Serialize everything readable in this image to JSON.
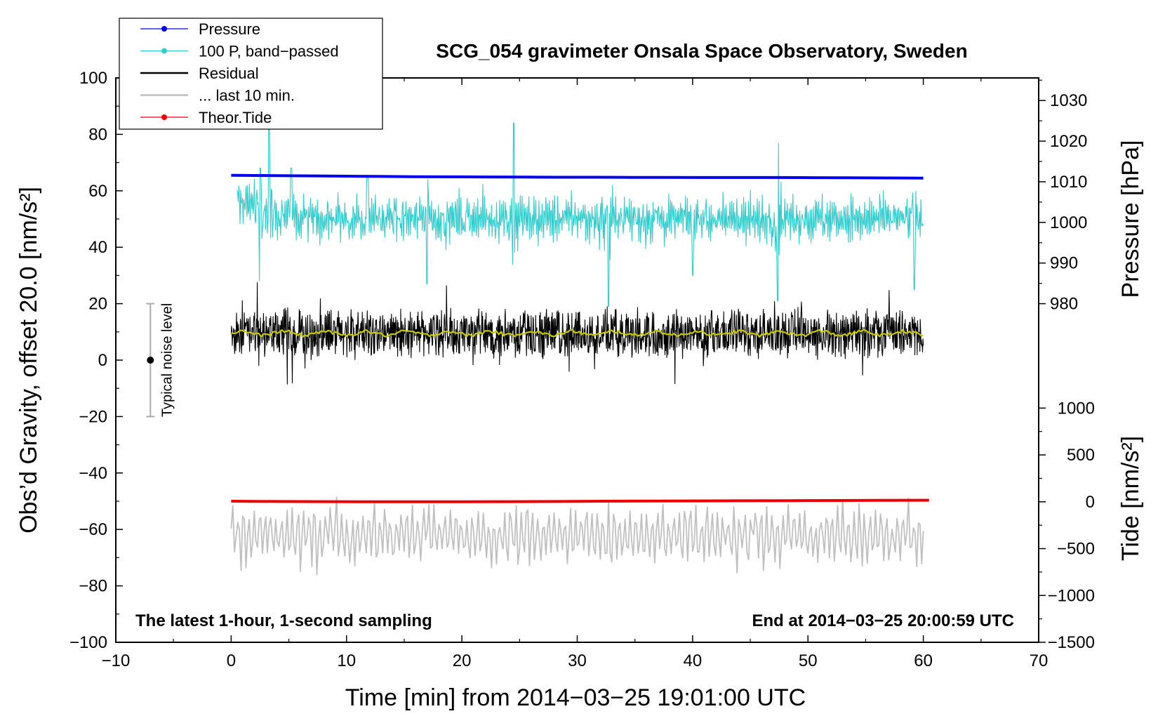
{
  "chart_data": {
    "type": "line",
    "title": "SCG_054 gravimeter Onsala Space Observatory, Sweden",
    "xlabel": "Time [min] from 2014−03−25 19:01:00 UTC",
    "ylabel": "Obs’d Gravity, offset 20.0 [nm/s²]",
    "ylabel_right_top": "Pressure [hPa]",
    "ylabel_right_bottom": "Tide [nm/s²]",
    "xlim": [
      -10,
      70
    ],
    "ylim": [
      -100,
      100
    ],
    "xticks": [
      -10,
      0,
      10,
      20,
      30,
      40,
      50,
      60,
      70
    ],
    "xtick_labels": [
      "−10",
      "0",
      "10",
      "20",
      "30",
      "40",
      "50",
      "60",
      "70"
    ],
    "yticks": [
      -100,
      -80,
      -60,
      -40,
      -20,
      0,
      20,
      40,
      60,
      80,
      100
    ],
    "ytick_labels": [
      "−100",
      "−80",
      "−60",
      "−40",
      "−20",
      "0",
      "20",
      "40",
      "60",
      "80",
      "100"
    ],
    "pressure_axis": {
      "ticks": [
        980,
        990,
        1000,
        1010,
        1020,
        1030
      ],
      "tick_labels": [
        "980",
        "990",
        "1000",
        "1010",
        "1020",
        "1030"
      ],
      "map": {
        "value_a": 980,
        "gravity_a": 20,
        "value_b": 1030,
        "gravity_b": 92
      }
    },
    "tide_axis": {
      "ticks": [
        -1500,
        -1000,
        -500,
        0,
        500,
        1000
      ],
      "tick_labels": [
        "−1500",
        "−1000",
        "−500",
        "0",
        "500",
        "1000"
      ],
      "map": {
        "value_a": -1500,
        "gravity_a": -100,
        "value_b": 1000,
        "gravity_b": -17
      }
    },
    "noise_bar": {
      "x": -7,
      "center": 0,
      "low": -20,
      "high": 20,
      "label": "Typical noise level"
    },
    "series": [
      {
        "name": "Pressure",
        "color": "#0000ee",
        "style": "line-marker",
        "x_start": 0,
        "x_end": 60,
        "values": [
          65.5,
          65.4,
          65.3,
          65.2,
          65.1,
          65.0,
          64.95,
          64.9,
          64.85,
          64.8,
          64.8,
          64.75,
          64.75,
          64.7,
          64.7,
          64.7,
          64.65,
          64.6,
          64.55,
          64.5
        ]
      },
      {
        "name": "100 P, band−passed",
        "color": "#33cccc",
        "style": "line-marker",
        "x_start": 0.5,
        "x_end": 60,
        "mean": 50,
        "amplitude": 5,
        "spikes": [
          {
            "x": 2.5,
            "low": 28,
            "high": 68
          },
          {
            "x": 3.3,
            "low": 25,
            "high": 83
          },
          {
            "x": 5.2,
            "low": 31,
            "high": 68
          },
          {
            "x": 11.8,
            "low": 33,
            "high": 65
          },
          {
            "x": 17.0,
            "low": 27,
            "high": 64
          },
          {
            "x": 24.5,
            "low": 20,
            "high": 84
          },
          {
            "x": 32.7,
            "low": 19,
            "high": 80
          },
          {
            "x": 40.0,
            "low": 30,
            "high": 60
          },
          {
            "x": 47.4,
            "low": 21,
            "high": 77
          },
          {
            "x": 59.2,
            "low": 25,
            "high": 63
          }
        ]
      },
      {
        "name": "Residual",
        "color": "#000000",
        "style": "line",
        "x_start": 0,
        "x_end": 60,
        "mean": 9.5,
        "amplitude": 5,
        "min": -11,
        "max": 28
      },
      {
        "name": "... last 10 min.",
        "color": "#c0c0c0",
        "style": "line",
        "x_start": 0,
        "x_end": 60,
        "mean": -62,
        "amplitude": 9,
        "min": -81,
        "max": -45
      },
      {
        "name": "Theor.Tide",
        "color": "#ee0000",
        "style": "line-marker",
        "x_start": 0,
        "x_end": 60.5,
        "values": [
          -50.0,
          -50.1,
          -50.15,
          -50.2,
          -50.2,
          -50.2,
          -50.15,
          -50.1,
          -50.0,
          -49.95,
          -49.9,
          -49.85,
          -49.8,
          -49.75,
          -49.7,
          -49.65
        ]
      },
      {
        "name": "moving mean",
        "legend": false,
        "color": "#c8c800",
        "style": "line",
        "x_start": 0,
        "x_end": 60,
        "mean": 9.5,
        "amplitude": 1.2
      }
    ],
    "legend": {
      "position": "top-left",
      "entries": [
        "Pressure",
        "100 P, band−passed",
        "Residual",
        "... last 10 min.",
        "Theor.Tide"
      ]
    },
    "annotations": {
      "bottom_left": "The latest 1-hour, 1-second sampling",
      "bottom_right": "End at 2014−03−25 20:00:59 UTC"
    }
  }
}
